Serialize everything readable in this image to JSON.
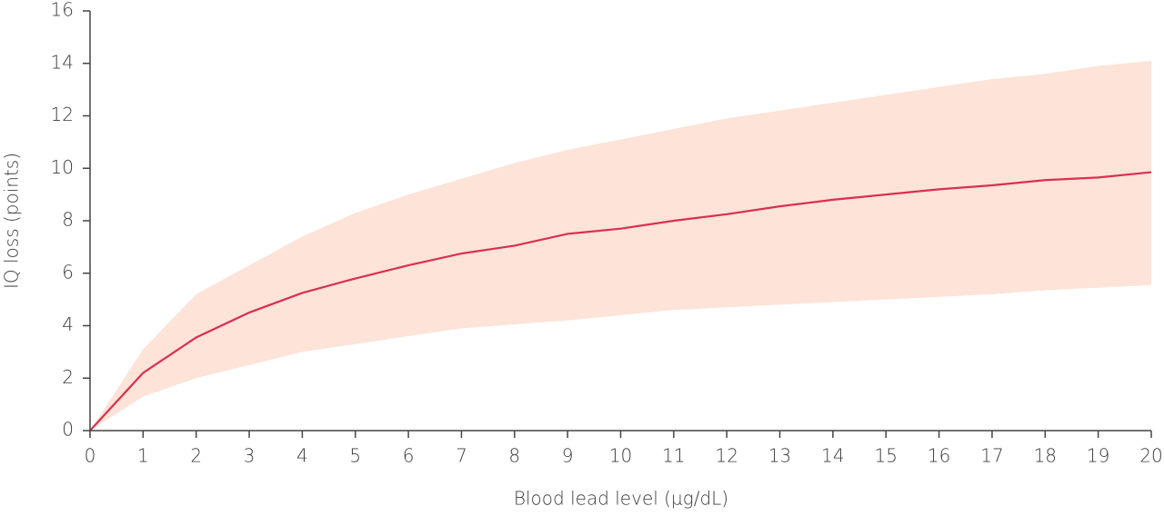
{
  "chart_data": {
    "type": "line",
    "xlabel": "Blood lead level (µg/dL)",
    "ylabel": "IQ loss (points)",
    "x": [
      0,
      1,
      2,
      3,
      4,
      5,
      6,
      7,
      8,
      9,
      10,
      11,
      12,
      13,
      14,
      15,
      16,
      17,
      18,
      19,
      20
    ],
    "values": [
      0,
      2.2,
      3.55,
      4.5,
      5.25,
      5.8,
      6.3,
      6.75,
      7.05,
      7.5,
      7.7,
      8.0,
      8.25,
      8.55,
      8.8,
      9.0,
      9.2,
      9.35,
      9.55,
      9.65,
      9.85
    ],
    "upper": [
      0,
      3.1,
      5.2,
      6.3,
      7.4,
      8.3,
      9.0,
      9.6,
      10.2,
      10.7,
      11.1,
      11.5,
      11.9,
      12.2,
      12.5,
      12.8,
      13.1,
      13.4,
      13.6,
      13.9,
      14.1
    ],
    "lower": [
      0,
      1.3,
      2.0,
      2.5,
      3.0,
      3.3,
      3.6,
      3.9,
      4.05,
      4.2,
      4.4,
      4.6,
      4.7,
      4.8,
      4.9,
      5.0,
      5.1,
      5.2,
      5.35,
      5.45,
      5.55
    ],
    "color": "#d9304f",
    "band_color": "#fde3d8",
    "xlim": [
      0,
      20
    ],
    "xticks": [
      0,
      1,
      2,
      3,
      4,
      5,
      6,
      7,
      8,
      9,
      10,
      11,
      12,
      13,
      14,
      15,
      16,
      17,
      18,
      19,
      20
    ],
    "ylim": [
      0,
      16
    ],
    "yticks": [
      0,
      2,
      4,
      6,
      8,
      10,
      12,
      14,
      16
    ]
  }
}
